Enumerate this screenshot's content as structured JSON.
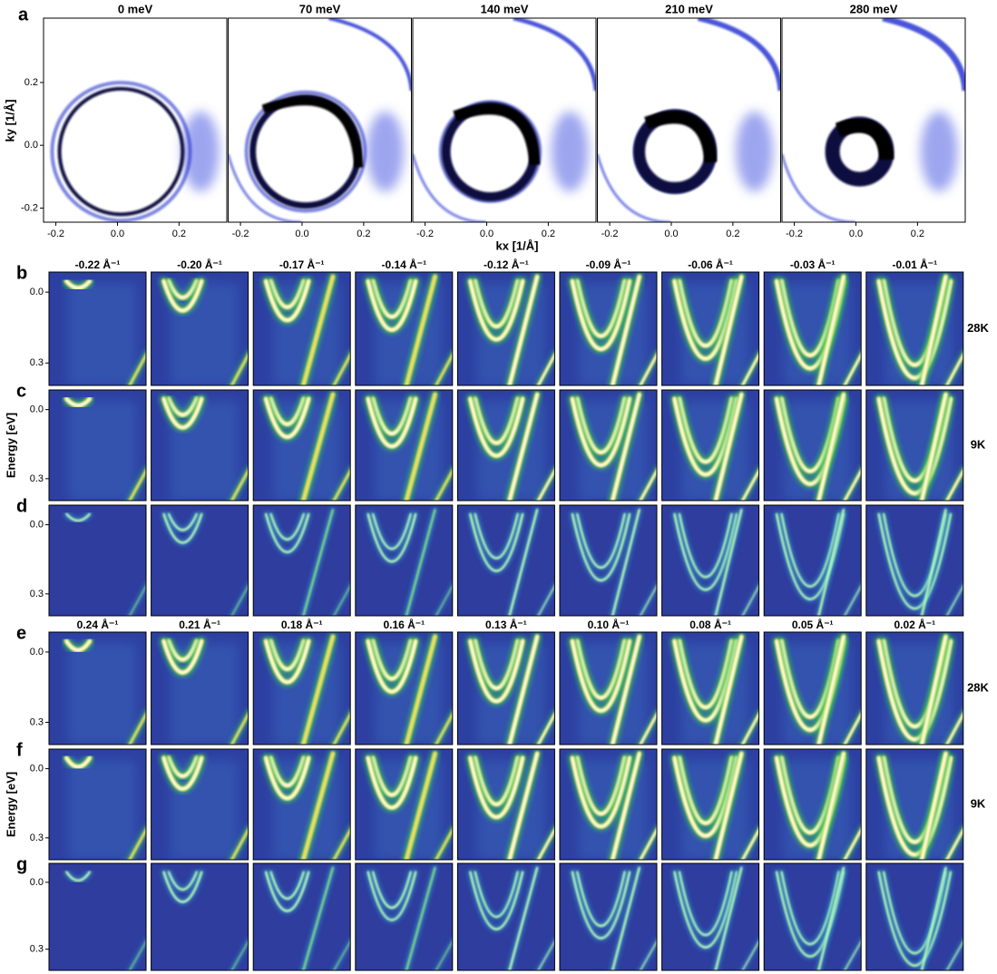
{
  "constant_energy": {
    "label": "a",
    "titles": [
      "0 meV",
      "70 meV",
      "140 meV",
      "210 meV",
      "280 meV"
    ],
    "xlabel": "kx [1/Å]",
    "ylabel": "ky [1/Å]",
    "xlim": [
      -0.24,
      0.355
    ],
    "xticks": [
      -0.2,
      {
        "value": 0,
        "label": "0.0"
      },
      0.2
    ],
    "ylim": [
      -0.245,
      0.405
    ],
    "yticks": [
      -0.2,
      {
        "value": 0,
        "label": "0.0"
      },
      0.2
    ]
  },
  "cuts": {
    "ylabel": "Energy [eV]",
    "ylim": [
      -0.085,
      0.395
    ],
    "yticks": [
      {
        "value": 0,
        "label": "0.0"
      },
      0.3
    ],
    "rows": [
      {
        "label": "b",
        "titles": [
          "-0.22 Å⁻¹",
          "-0.20 Å⁻¹",
          "-0.17 Å⁻¹",
          "-0.14 Å⁻¹",
          "-0.12 Å⁻¹",
          "-0.09 Å⁻¹",
          "-0.06 Å⁻¹",
          "-0.03 Å⁻¹",
          "-0.01 Å⁻¹"
        ],
        "temperature": "28K"
      },
      {
        "label": "c",
        "temperature": "9K",
        "show_ylabel": true
      },
      {
        "label": "d"
      },
      {
        "label": "e",
        "titles": [
          "0.24 Å⁻¹",
          "0.21 Å⁻¹",
          "0.18 Å⁻¹",
          "0.16 Å⁻¹",
          "0.13 Å⁻¹",
          "0.10 Å⁻¹",
          "0.08 Å⁻¹",
          "0.05 Å⁻¹",
          "0.02 Å⁻¹"
        ],
        "temperature": "28K"
      },
      {
        "label": "f",
        "temperature": "9K",
        "show_ylabel": true
      },
      {
        "label": "g"
      }
    ]
  }
}
